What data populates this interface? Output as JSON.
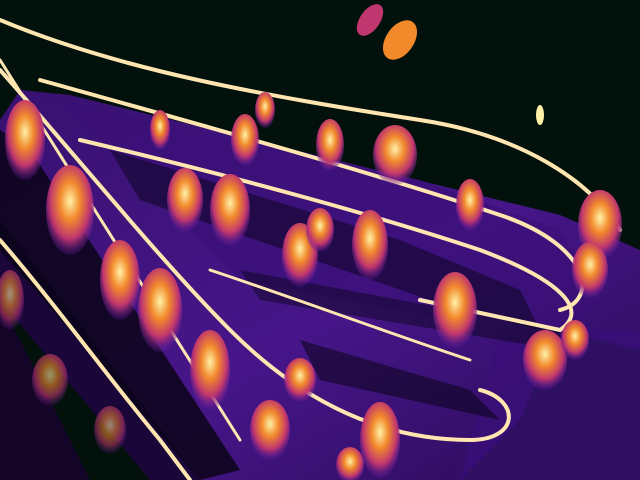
{
  "image": {
    "subject": "thermal-camera-escalators-crowd",
    "palette": {
      "background": "#02110c",
      "cool": "#1a0638",
      "mid": "#5b1b9e",
      "warm": "#c0366e",
      "hot": "#f28a2c",
      "hottest": "#fff2a8",
      "rail": "#ffe6b0"
    }
  }
}
